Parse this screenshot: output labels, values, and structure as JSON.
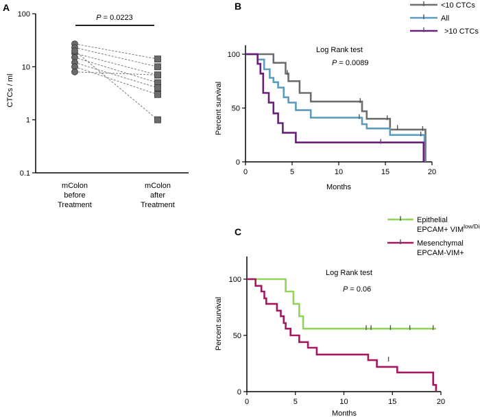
{
  "chart_data": [
    {
      "panel": "A",
      "type": "scatter",
      "ylabel": "CTCs / ml",
      "yscale": "log",
      "ylim": [
        0.1,
        100
      ],
      "yticks": [
        "0.1",
        "1",
        "10",
        "100"
      ],
      "categories": [
        "mColon before Treatment",
        "mColon after Treatment"
      ],
      "category_lines": [
        [
          "mColon",
          "before",
          "Treatment"
        ],
        [
          "mColon",
          "after",
          "Treatment"
        ]
      ],
      "pvalue": {
        "label": "P",
        "text": " = 0.0223"
      },
      "pairs": [
        {
          "before": 27,
          "after": 14
        },
        {
          "before": 23,
          "after": 10
        },
        {
          "before": 18,
          "after": 7
        },
        {
          "before": 15,
          "after": 5
        },
        {
          "before": 12,
          "after": 4
        },
        {
          "before": 10,
          "after": 3
        },
        {
          "before": 8,
          "after": 7
        },
        {
          "before": 20,
          "after": 1
        }
      ],
      "colors": {
        "before": "#6b6b6b",
        "after": "#6b6b6b",
        "line": "#7a7a7a"
      }
    },
    {
      "panel": "B",
      "type": "line",
      "xlabel": "Months",
      "ylabel": "Percent survival",
      "xlim": [
        0,
        20
      ],
      "ylim": [
        0,
        100
      ],
      "xticks": [
        "0",
        "5",
        "10",
        "15",
        "20"
      ],
      "yticks": [
        "0",
        "50",
        "100"
      ],
      "annotation": "Log Rank test",
      "pvalue": {
        "label": "P",
        "text": " = 0.0089"
      },
      "series": [
        {
          "name": "<10 CTCs",
          "color": "#6d6d6d",
          "steps": [
            [
              0,
              100
            ],
            [
              3,
              100
            ],
            [
              3,
              92
            ],
            [
              4.3,
              92
            ],
            [
              4.3,
              82
            ],
            [
              4.6,
              82
            ],
            [
              4.6,
              75
            ],
            [
              5.8,
              75
            ],
            [
              5.8,
              64
            ],
            [
              7,
              64
            ],
            [
              7,
              56
            ],
            [
              12.5,
              56
            ],
            [
              12.5,
              47
            ],
            [
              13,
              47
            ],
            [
              13,
              40
            ],
            [
              15.5,
              40
            ],
            [
              15.5,
              30
            ],
            [
              18,
              30
            ],
            [
              18,
              30
            ],
            [
              19.3,
              30
            ],
            [
              19.3,
              0
            ]
          ],
          "censors": [
            [
              4.5,
              82
            ],
            [
              12.3,
              56
            ],
            [
              15.2,
              40
            ],
            [
              19,
              30
            ]
          ]
        },
        {
          "name": "All",
          "color": "#5b9bbd",
          "steps": [
            [
              0,
              100
            ],
            [
              1.3,
              100
            ],
            [
              1.3,
              95
            ],
            [
              2,
              95
            ],
            [
              2,
              86
            ],
            [
              2.6,
              86
            ],
            [
              2.6,
              78
            ],
            [
              3,
              78
            ],
            [
              3,
              74
            ],
            [
              3.5,
              74
            ],
            [
              3.5,
              69
            ],
            [
              4.1,
              69
            ],
            [
              4.1,
              60
            ],
            [
              4.6,
              60
            ],
            [
              4.6,
              55
            ],
            [
              5.4,
              55
            ],
            [
              5.4,
              48
            ],
            [
              7,
              48
            ],
            [
              7,
              41
            ],
            [
              12.5,
              41
            ],
            [
              12.5,
              35
            ],
            [
              13,
              35
            ],
            [
              13,
              31
            ],
            [
              15.5,
              31
            ],
            [
              15.5,
              25
            ],
            [
              18,
              25
            ],
            [
              18,
              25
            ],
            [
              19.2,
              25
            ],
            [
              19.2,
              0
            ]
          ],
          "censors": [
            [
              12.2,
              41
            ],
            [
              16.3,
              31
            ],
            [
              18.8,
              25
            ]
          ]
        },
        {
          "name": ">10 CTCs",
          "color": "#6a1f7a",
          "steps": [
            [
              0,
              100
            ],
            [
              1.3,
              100
            ],
            [
              1.3,
              91
            ],
            [
              1.6,
              91
            ],
            [
              1.6,
              82
            ],
            [
              1.9,
              82
            ],
            [
              1.9,
              64
            ],
            [
              2.5,
              64
            ],
            [
              2.5,
              55
            ],
            [
              3,
              55
            ],
            [
              3,
              45
            ],
            [
              3.5,
              45
            ],
            [
              3.5,
              36
            ],
            [
              4,
              36
            ],
            [
              4,
              27
            ],
            [
              5.4,
              27
            ],
            [
              5.4,
              18
            ],
            [
              19.1,
              18
            ],
            [
              19.1,
              0
            ]
          ],
          "censors": [
            [
              14.5,
              18
            ]
          ]
        }
      ]
    },
    {
      "panel": "C",
      "type": "line",
      "xlabel": "Months",
      "ylabel": "Percent survival",
      "xlim": [
        0,
        20
      ],
      "ylim": [
        0,
        100
      ],
      "xticks": [
        "0",
        "5",
        "10",
        "15",
        "20"
      ],
      "yticks": [
        "0",
        "50",
        "100"
      ],
      "annotation": "Log Rank test",
      "pvalue": {
        "label": "P",
        "text": " = 0.06"
      },
      "series": [
        {
          "name": "Epithelial EPCAM+ VIMlow/Dim",
          "color": "#93d35a",
          "legend_lines": [
            "Epithelial",
            "EPCAM+ VIM"
          ],
          "legend_sup": "low/Dim",
          "steps": [
            [
              0,
              100
            ],
            [
              4,
              100
            ],
            [
              4,
              89
            ],
            [
              4.8,
              89
            ],
            [
              4.8,
              78
            ],
            [
              5.4,
              78
            ],
            [
              5.4,
              67
            ],
            [
              5.8,
              67
            ],
            [
              5.8,
              56
            ],
            [
              19.5,
              56
            ]
          ],
          "censors": [
            [
              12.3,
              56
            ],
            [
              12.8,
              56
            ],
            [
              14.8,
              56
            ],
            [
              16.8,
              56
            ],
            [
              19.2,
              56
            ]
          ]
        },
        {
          "name": "Mesenchymal EPCAM-VIM+",
          "color": "#a3185f",
          "legend_lines": [
            "Mesenchymal",
            "EPCAM-VIM+"
          ],
          "legend_sup": "",
          "steps": [
            [
              0,
              100
            ],
            [
              0.9,
              100
            ],
            [
              0.9,
              94
            ],
            [
              1.5,
              94
            ],
            [
              1.5,
              89
            ],
            [
              1.8,
              89
            ],
            [
              1.8,
              83
            ],
            [
              2,
              83
            ],
            [
              2,
              78
            ],
            [
              3.1,
              78
            ],
            [
              3.1,
              72
            ],
            [
              3.5,
              72
            ],
            [
              3.5,
              67
            ],
            [
              3.8,
              67
            ],
            [
              3.8,
              61
            ],
            [
              4,
              61
            ],
            [
              4,
              56
            ],
            [
              4.5,
              56
            ],
            [
              4.5,
              50
            ],
            [
              5.4,
              50
            ],
            [
              5.4,
              44
            ],
            [
              6.3,
              44
            ],
            [
              6.3,
              39
            ],
            [
              7.2,
              39
            ],
            [
              7.2,
              33
            ],
            [
              12.5,
              33
            ],
            [
              12.5,
              28
            ],
            [
              13.4,
              28
            ],
            [
              13.4,
              22
            ],
            [
              15.5,
              22
            ],
            [
              15.5,
              17
            ],
            [
              15.8,
              17
            ],
            [
              15.8,
              17
            ],
            [
              19.2,
              17
            ],
            [
              19.2,
              6
            ],
            [
              19.5,
              6
            ],
            [
              19.5,
              0
            ]
          ],
          "censors": [
            [
              14.6,
              28
            ]
          ]
        }
      ]
    }
  ]
}
